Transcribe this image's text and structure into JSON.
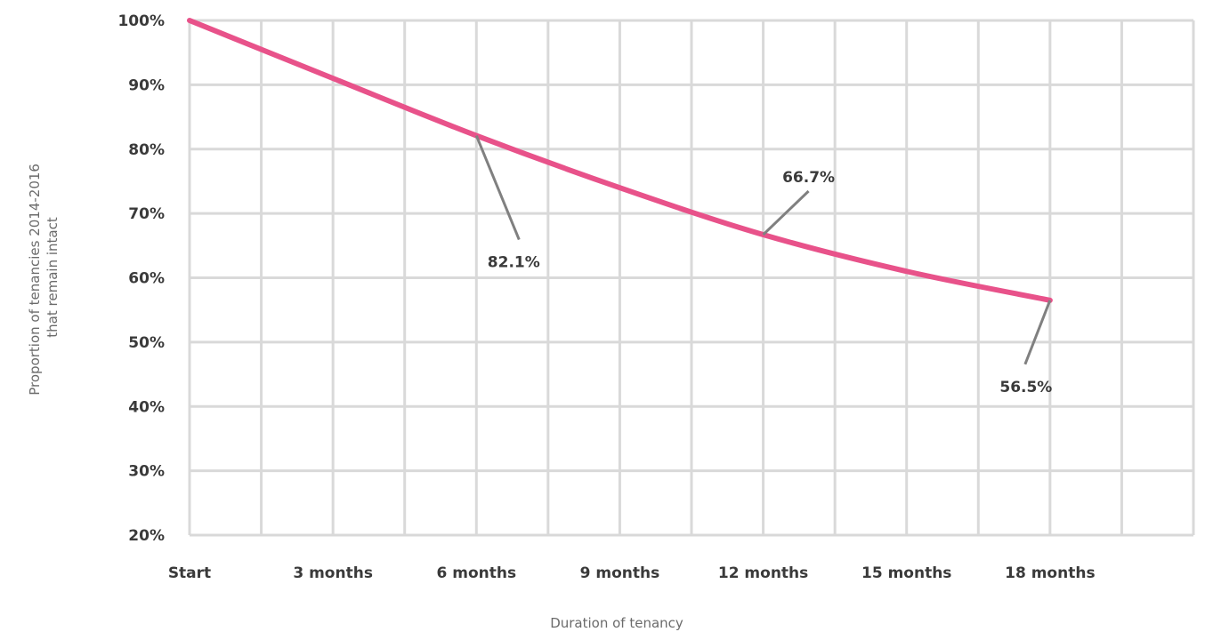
{
  "chart_data": {
    "type": "line",
    "title": "",
    "xlabel": "Duration of tenancy",
    "ylabel_lines": [
      "Proportion of tenancies 2014-2016",
      "that remain intact"
    ],
    "categories": [
      "Start",
      "3 months",
      "6 months",
      "9 months",
      "12 months",
      "15 months",
      "18 months"
    ],
    "x": [
      0,
      1.5,
      3,
      4.5,
      6,
      7.5,
      9,
      10.5,
      12,
      13.5,
      15,
      16.5,
      18
    ],
    "series": [
      {
        "values": [
          100,
          91,
          82.1,
          74,
          66.7,
          61,
          56.5
        ],
        "x_months": [
          0,
          3,
          6,
          9,
          12,
          15,
          18
        ],
        "color": "#e8528a"
      }
    ],
    "y_ticks": [
      "20%",
      "30%",
      "40%",
      "50%",
      "60%",
      "70%",
      "80%",
      "90%",
      "100%"
    ],
    "ylim": [
      20,
      100
    ],
    "grid": true,
    "annotations": [
      {
        "label": "82.1%",
        "x_month": 6,
        "y": 82.1
      },
      {
        "label": "66.7%",
        "x_month": 12,
        "y": 66.7
      },
      {
        "label": "56.5%",
        "x_month": 18,
        "y": 56.5
      }
    ]
  }
}
